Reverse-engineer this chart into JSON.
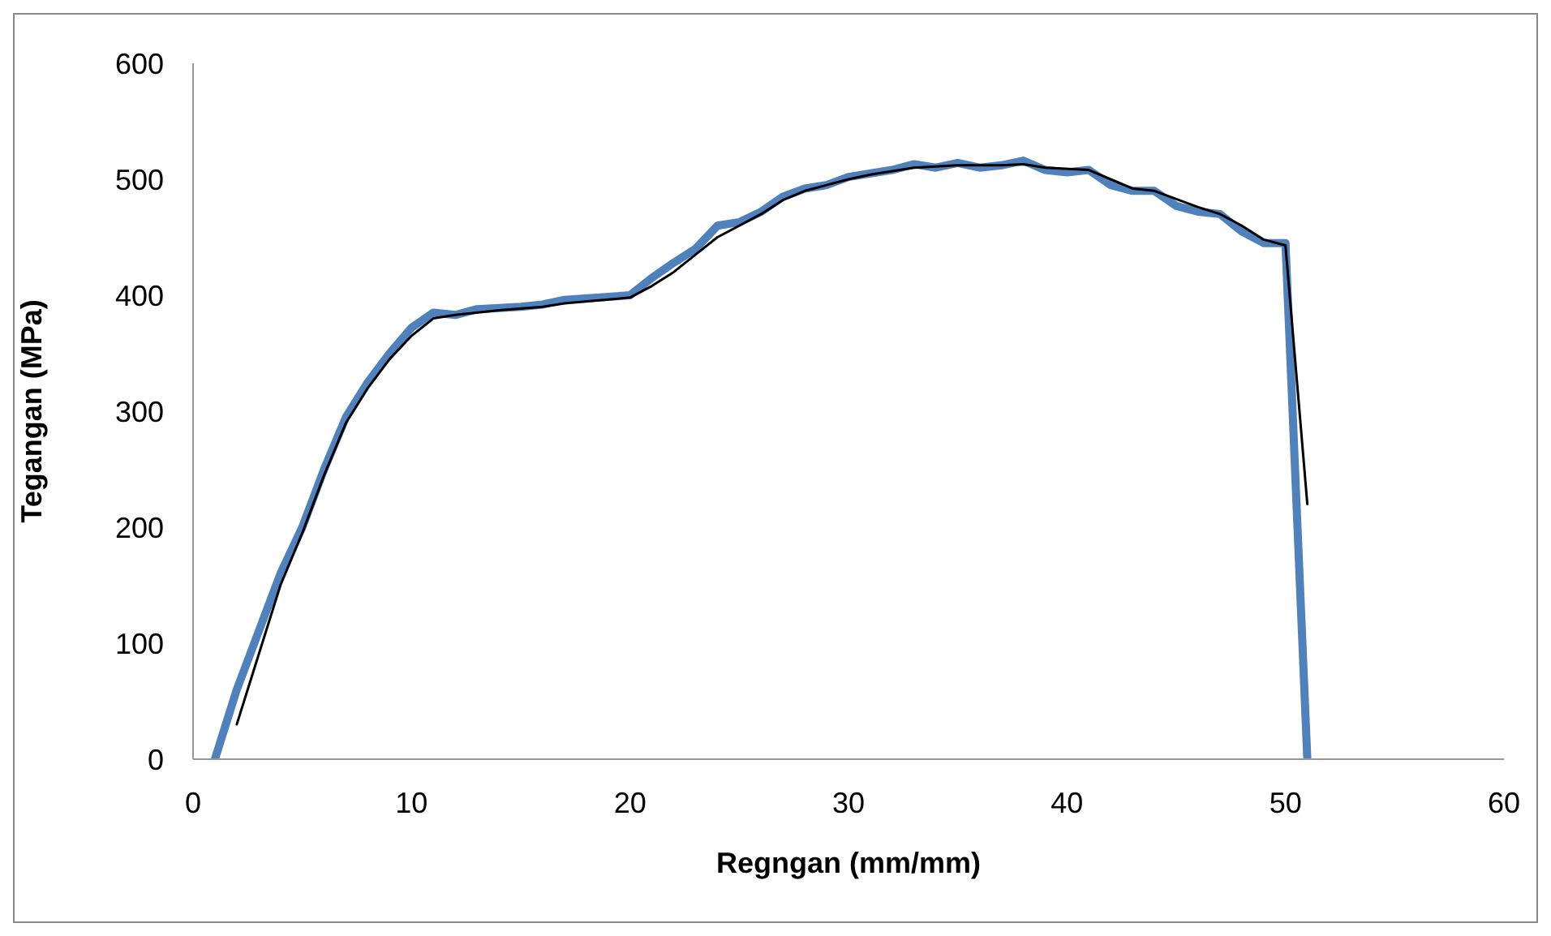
{
  "chart_data": {
    "type": "line",
    "xlabel": "Regngan (mm/mm)",
    "ylabel": "Tegangan (MPa)",
    "xlim": [
      0,
      60
    ],
    "xticks": [
      0,
      10,
      20,
      30,
      40,
      50,
      60
    ],
    "ylim": [
      0,
      600
    ],
    "yticks": [
      0,
      100,
      200,
      300,
      400,
      500,
      600
    ],
    "grid": false,
    "marker": "none",
    "line_style": "solid",
    "series": [
      {
        "color": "#4f81bd",
        "x": [
          1,
          2,
          3,
          4,
          5,
          6,
          7,
          8,
          9,
          10,
          11,
          12,
          13,
          15,
          16,
          17,
          20,
          21,
          22,
          23,
          24,
          25,
          26,
          27,
          28,
          29,
          30,
          32,
          33,
          34,
          35,
          36,
          37,
          38,
          39,
          40,
          41,
          42,
          43,
          44,
          45,
          46,
          47,
          48,
          49,
          50,
          51
        ],
        "values": [
          0,
          60,
          110,
          160,
          200,
          250,
          295,
          325,
          350,
          372,
          385,
          383,
          388,
          390,
          392,
          396,
          400,
          415,
          428,
          440,
          460,
          463,
          472,
          485,
          492,
          495,
          502,
          508,
          513,
          510,
          514,
          510,
          512,
          516,
          508,
          506,
          508,
          495,
          490,
          490,
          477,
          472,
          470,
          455,
          445,
          445,
          0
        ]
      },
      {
        "color": "#000000",
        "x": [
          2,
          3,
          4,
          5,
          6,
          7,
          8,
          9,
          10,
          11,
          12,
          14,
          16,
          17,
          20,
          21,
          22,
          23,
          24,
          25,
          26,
          27,
          28,
          29,
          30,
          31,
          32,
          33,
          35,
          37,
          38,
          39,
          41,
          42,
          43,
          44,
          45,
          46,
          47,
          48,
          49,
          50,
          51
        ],
        "values": [
          30,
          90,
          150,
          195,
          245,
          290,
          320,
          345,
          365,
          380,
          383,
          387,
          390,
          393,
          398,
          408,
          420,
          435,
          450,
          460,
          470,
          482,
          490,
          495,
          500,
          504,
          507,
          510,
          512,
          512,
          513,
          510,
          508,
          500,
          492,
          490,
          483,
          476,
          470,
          460,
          448,
          443,
          220
        ]
      }
    ]
  }
}
